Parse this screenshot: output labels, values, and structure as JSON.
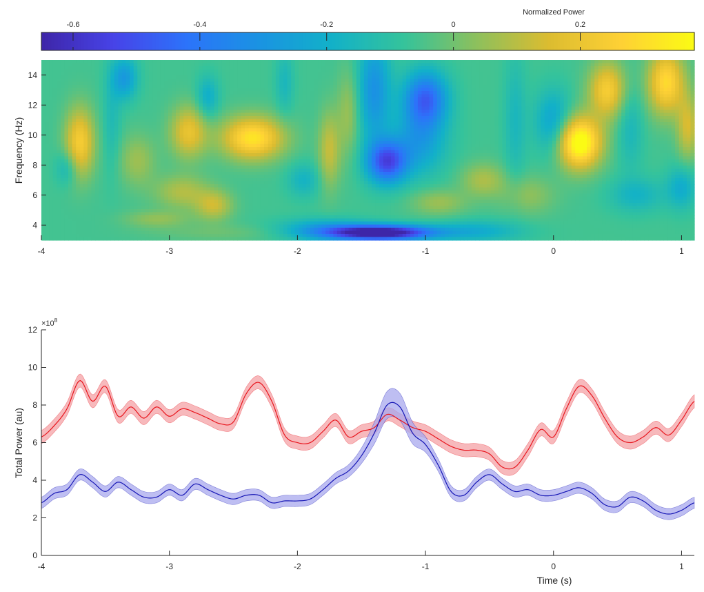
{
  "colorbar": {
    "title": "Normalized Power",
    "range": [
      -0.65,
      0.38
    ],
    "ticks": [
      -0.6,
      -0.4,
      -0.2,
      0,
      0.2
    ],
    "tick_labels": [
      "-0.6",
      "-0.4",
      "-0.2",
      "0",
      "0.2"
    ],
    "colormap": [
      "#3e26a8",
      "#4743e8",
      "#2c73fa",
      "#1a93e2",
      "#12b1c8",
      "#35c39b",
      "#8dc05c",
      "#dcbc30",
      "#fed135",
      "#fbfb14"
    ]
  },
  "chart_data": [
    {
      "type": "heatmap",
      "title": "",
      "xlabel": "",
      "ylabel": "Frequency (Hz)",
      "xlim": [
        -4,
        1.1
      ],
      "ylim": [
        3,
        15
      ],
      "xticks": [
        -4,
        -3,
        -2,
        -1,
        0,
        1
      ],
      "xtick_labels": [
        "-4",
        "-3",
        "-2",
        "-1",
        "0",
        "1"
      ],
      "yticks": [
        4,
        6,
        8,
        10,
        12,
        14
      ],
      "ytick_labels": [
        "4",
        "6",
        "8",
        "10",
        "12",
        "14"
      ],
      "baseline": -0.06,
      "blobs": [
        {
          "t": -3.7,
          "f": 9.5,
          "st": 0.08,
          "sf": 1.6,
          "a": 0.3
        },
        {
          "t": -3.8,
          "f": 7.8,
          "st": 0.06,
          "sf": 0.8,
          "a": -0.12
        },
        {
          "t": -3.45,
          "f": 11.0,
          "st": 0.05,
          "sf": 2.5,
          "a": -0.08
        },
        {
          "t": -3.35,
          "f": 13.8,
          "st": 0.07,
          "sf": 1.0,
          "a": -0.22
        },
        {
          "t": -3.25,
          "f": 8.3,
          "st": 0.1,
          "sf": 1.2,
          "a": 0.12
        },
        {
          "t": -2.85,
          "f": 10.2,
          "st": 0.1,
          "sf": 1.2,
          "a": 0.25
        },
        {
          "t": -2.9,
          "f": 6.2,
          "st": 0.15,
          "sf": 0.8,
          "a": 0.15
        },
        {
          "t": -2.65,
          "f": 5.3,
          "st": 0.1,
          "sf": 0.7,
          "a": 0.18
        },
        {
          "t": -2.7,
          "f": 12.5,
          "st": 0.06,
          "sf": 1.0,
          "a": -0.15
        },
        {
          "t": -2.35,
          "f": 9.8,
          "st": 0.17,
          "sf": 1.0,
          "a": 0.38
        },
        {
          "t": -2.1,
          "f": 13.5,
          "st": 0.05,
          "sf": 1.5,
          "a": -0.1
        },
        {
          "t": -1.95,
          "f": 7.0,
          "st": 0.09,
          "sf": 0.8,
          "a": -0.12
        },
        {
          "t": -1.75,
          "f": 9.0,
          "st": 0.06,
          "sf": 1.8,
          "a": 0.18
        },
        {
          "t": -1.6,
          "f": 11.5,
          "st": 0.06,
          "sf": 2.0,
          "a": 0.12
        },
        {
          "t": -1.4,
          "f": 13.0,
          "st": 0.09,
          "sf": 2.5,
          "a": -0.25
        },
        {
          "t": -1.3,
          "f": 8.2,
          "st": 0.11,
          "sf": 1.0,
          "a": -0.45
        },
        {
          "t": -1.0,
          "f": 12.4,
          "st": 0.12,
          "sf": 1.3,
          "a": -0.4
        },
        {
          "t": -1.05,
          "f": 9.5,
          "st": 0.15,
          "sf": 1.5,
          "a": -0.2
        },
        {
          "t": -1.35,
          "f": 3.5,
          "st": 0.28,
          "sf": 0.35,
          "a": -0.7
        },
        {
          "t": -1.8,
          "f": 3.7,
          "st": 0.25,
          "sf": 0.5,
          "a": -0.2
        },
        {
          "t": -0.9,
          "f": 5.5,
          "st": 0.15,
          "sf": 0.6,
          "a": 0.12
        },
        {
          "t": -0.55,
          "f": 7.0,
          "st": 0.12,
          "sf": 0.8,
          "a": 0.14
        },
        {
          "t": -0.6,
          "f": 3.6,
          "st": 0.25,
          "sf": 0.5,
          "a": -0.15
        },
        {
          "t": -0.3,
          "f": 11.0,
          "st": 0.06,
          "sf": 3.0,
          "a": -0.1
        },
        {
          "t": -0.2,
          "f": 6.0,
          "st": 0.15,
          "sf": 0.9,
          "a": 0.1
        },
        {
          "t": 0.0,
          "f": 10.8,
          "st": 0.1,
          "sf": 1.5,
          "a": -0.2
        },
        {
          "t": 0.2,
          "f": 9.5,
          "st": 0.12,
          "sf": 1.2,
          "a": 0.5
        },
        {
          "t": 0.42,
          "f": 13.0,
          "st": 0.1,
          "sf": 1.3,
          "a": 0.3
        },
        {
          "t": 0.6,
          "f": 10.5,
          "st": 0.07,
          "sf": 2.0,
          "a": -0.1
        },
        {
          "t": 0.65,
          "f": 6.0,
          "st": 0.15,
          "sf": 0.8,
          "a": -0.12
        },
        {
          "t": 0.88,
          "f": 13.5,
          "st": 0.1,
          "sf": 1.5,
          "a": 0.35
        },
        {
          "t": 1.05,
          "f": 10.5,
          "st": 0.06,
          "sf": 1.5,
          "a": 0.2
        },
        {
          "t": 1.0,
          "f": 6.5,
          "st": 0.08,
          "sf": 1.0,
          "a": -0.15
        },
        {
          "t": -2.6,
          "f": 3.5,
          "st": 0.4,
          "sf": 0.4,
          "a": 0.05
        },
        {
          "t": -3.1,
          "f": 4.4,
          "st": 0.18,
          "sf": 0.4,
          "a": 0.1
        }
      ]
    },
    {
      "type": "line",
      "title": "",
      "xlabel": "Time (s)",
      "ylabel": "Total Power (au)",
      "exponent_label": "×10",
      "exponent": "8",
      "xlim": [
        -4,
        1.1
      ],
      "ylim": [
        0,
        12
      ],
      "xticks": [
        -4,
        -3,
        -2,
        -1,
        0,
        1
      ],
      "xtick_labels": [
        "-4",
        "-3",
        "-2",
        "-1",
        "0",
        "1"
      ],
      "yticks": [
        0,
        2,
        4,
        6,
        8,
        10,
        12
      ],
      "ytick_labels": [
        "0",
        "2",
        "4",
        "6",
        "8",
        "10",
        "12"
      ],
      "series": [
        {
          "name": "red",
          "color": "#e8141c",
          "band_color": "#f4a2a6",
          "band": 0.35,
          "x": [
            -4.0,
            -3.9,
            -3.8,
            -3.7,
            -3.6,
            -3.5,
            -3.4,
            -3.3,
            -3.2,
            -3.1,
            -3.0,
            -2.9,
            -2.8,
            -2.7,
            -2.6,
            -2.5,
            -2.4,
            -2.3,
            -2.2,
            -2.1,
            -2.0,
            -1.9,
            -1.8,
            -1.7,
            -1.6,
            -1.5,
            -1.4,
            -1.3,
            -1.2,
            -1.1,
            -1.0,
            -0.9,
            -0.8,
            -0.7,
            -0.6,
            -0.5,
            -0.4,
            -0.3,
            -0.2,
            -0.1,
            0.0,
            0.1,
            0.2,
            0.3,
            0.4,
            0.5,
            0.6,
            0.7,
            0.8,
            0.9,
            1.0,
            1.1
          ],
          "y": [
            6.3,
            6.9,
            7.8,
            9.3,
            8.2,
            9.0,
            7.4,
            7.9,
            7.3,
            7.9,
            7.4,
            7.8,
            7.6,
            7.3,
            7.0,
            7.1,
            8.6,
            9.2,
            8.2,
            6.4,
            6.0,
            6.0,
            6.6,
            7.2,
            6.3,
            6.6,
            6.8,
            7.5,
            7.2,
            6.8,
            6.6,
            6.2,
            5.8,
            5.6,
            5.6,
            5.4,
            4.7,
            4.7,
            5.6,
            6.7,
            6.3,
            7.8,
            9.0,
            8.5,
            7.3,
            6.3,
            6.0,
            6.3,
            6.8,
            6.4,
            7.2,
            8.2
          ]
        },
        {
          "name": "blue",
          "color": "#1414b4",
          "band_color": "#a8a8ee",
          "band": 0.3,
          "band_peak": {
            "x": -1.25,
            "extra": 0.45,
            "width": 0.15
          },
          "x": [
            -4.0,
            -3.9,
            -3.8,
            -3.7,
            -3.6,
            -3.5,
            -3.4,
            -3.3,
            -3.2,
            -3.1,
            -3.0,
            -2.9,
            -2.8,
            -2.7,
            -2.6,
            -2.5,
            -2.4,
            -2.3,
            -2.2,
            -2.1,
            -2.0,
            -1.9,
            -1.8,
            -1.7,
            -1.6,
            -1.5,
            -1.4,
            -1.3,
            -1.2,
            -1.1,
            -1.0,
            -0.9,
            -0.8,
            -0.7,
            -0.6,
            -0.5,
            -0.4,
            -0.3,
            -0.2,
            -0.1,
            0.0,
            0.1,
            0.2,
            0.3,
            0.4,
            0.5,
            0.6,
            0.7,
            0.8,
            0.9,
            1.0,
            1.1
          ],
          "y": [
            2.8,
            3.3,
            3.5,
            4.3,
            3.9,
            3.4,
            3.9,
            3.5,
            3.1,
            3.1,
            3.5,
            3.2,
            3.8,
            3.5,
            3.2,
            3.0,
            3.2,
            3.2,
            2.8,
            2.9,
            2.9,
            3.0,
            3.5,
            4.1,
            4.5,
            5.3,
            6.5,
            8.0,
            7.9,
            6.5,
            5.9,
            4.8,
            3.4,
            3.2,
            3.9,
            4.3,
            3.8,
            3.4,
            3.5,
            3.2,
            3.2,
            3.4,
            3.6,
            3.3,
            2.7,
            2.6,
            3.1,
            2.9,
            2.4,
            2.2,
            2.4,
            2.8
          ]
        }
      ]
    }
  ]
}
